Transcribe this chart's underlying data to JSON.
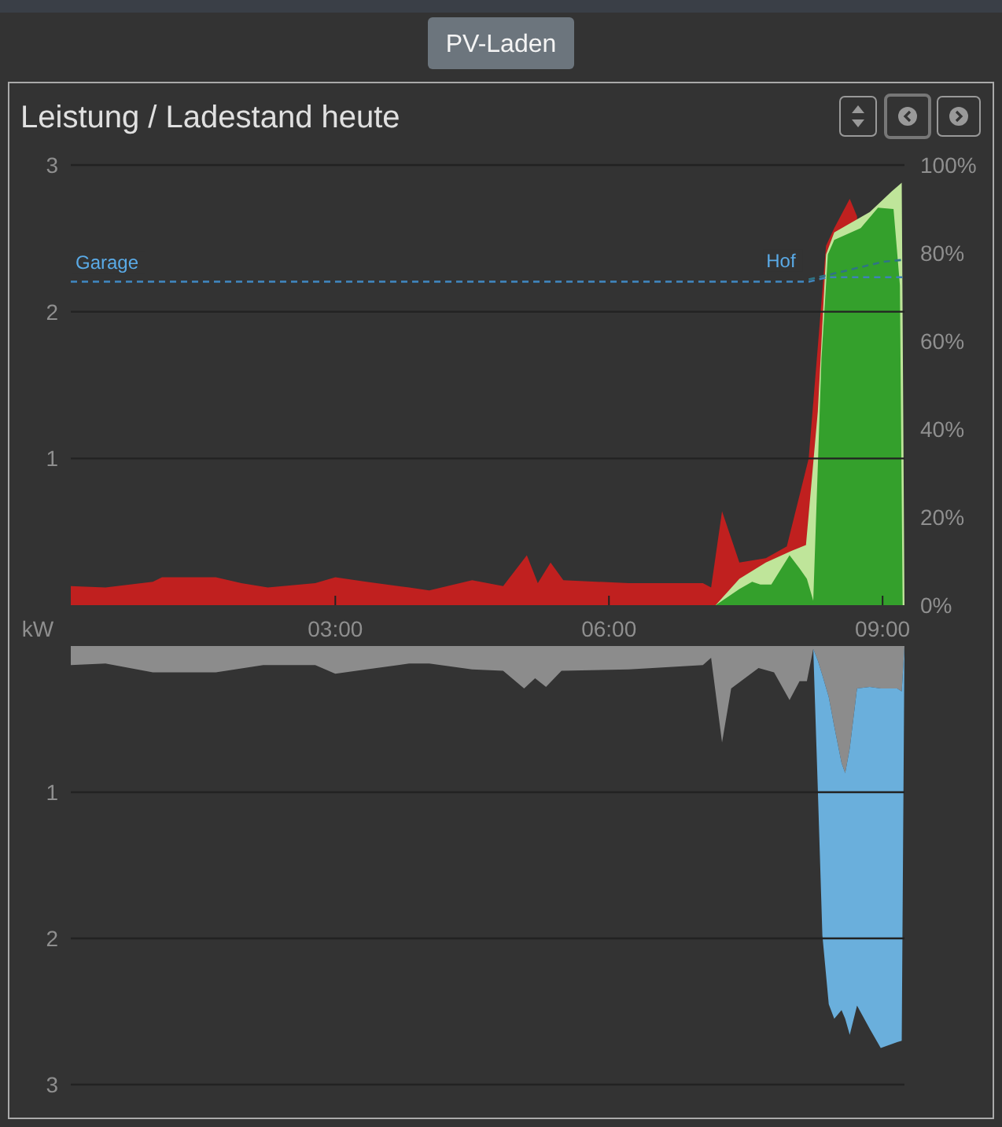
{
  "chart_data": [
    {
      "type": "area",
      "title": "Leistung / Ladestand heute",
      "ylabel": "kW",
      "annotations": [
        "PV-Laden"
      ],
      "xlim": [
        0.1,
        9.24
      ],
      "xticks": [
        {
          "value": 3,
          "label": "03:00"
        },
        {
          "value": 6,
          "label": "06:00"
        },
        {
          "value": 9,
          "label": "09:00"
        }
      ],
      "ylim": [
        0,
        3
      ],
      "yticks": [
        1,
        2,
        3
      ],
      "y2lim": [
        0,
        100
      ],
      "y2ticks": [
        {
          "value": 0,
          "label": "0%"
        },
        {
          "value": 20,
          "label": "20%"
        },
        {
          "value": 40,
          "label": "40%"
        },
        {
          "value": 60,
          "label": "60%"
        },
        {
          "value": 80,
          "label": "80%"
        },
        {
          "value": 100,
          "label": "100%"
        }
      ],
      "grid": "y",
      "series": [
        {
          "color": "#c0201f",
          "x": [
            0.1,
            0.48,
            1.0,
            1.1,
            1.69,
            1.97,
            2.26,
            2.78,
            3.0,
            3.34,
            3.81,
            4.03,
            4.5,
            4.84,
            5.1,
            5.22,
            5.36,
            5.5,
            6.22,
            7.03,
            7.12,
            7.24,
            7.43,
            7.72,
            7.95,
            8.19,
            8.38,
            8.47,
            8.64,
            8.72,
            8.78
          ],
          "values": [
            0.13,
            0.12,
            0.16,
            0.19,
            0.19,
            0.15,
            0.12,
            0.15,
            0.19,
            0.16,
            0.12,
            0.1,
            0.17,
            0.13,
            0.34,
            0.15,
            0.29,
            0.17,
            0.15,
            0.15,
            0.12,
            0.64,
            0.29,
            0.32,
            0.4,
            1.0,
            2.45,
            2.57,
            2.77,
            2.65,
            0
          ]
        },
        {
          "color": "#bfe59a",
          "x": [
            7.17,
            7.43,
            7.72,
            8.0,
            8.16,
            8.29,
            8.38,
            8.47,
            8.86,
            9.1,
            9.21,
            9.24
          ],
          "values": [
            0,
            0.18,
            0.29,
            0.37,
            0.41,
            1.32,
            2.39,
            2.54,
            2.68,
            2.82,
            2.88,
            0
          ]
        },
        {
          "color": "#34a02c",
          "x": [
            7.17,
            7.43,
            7.57,
            7.66,
            7.78,
            7.98,
            8.09,
            8.17,
            8.24,
            8.33,
            8.4,
            8.47,
            8.76,
            8.95,
            9.12,
            9.19,
            9.22
          ],
          "values": [
            0,
            0.11,
            0.16,
            0.14,
            0.14,
            0.34,
            0.25,
            0.18,
            0.03,
            1.68,
            2.39,
            2.49,
            2.57,
            2.71,
            2.7,
            2.18,
            0
          ]
        },
        {
          "name": "Garage",
          "type": "line",
          "axis": "y2",
          "line_style": "dashed",
          "color": "#3f82b8",
          "x": [
            0.1,
            8.19,
            8.4,
            9.24
          ],
          "values": [
            73.5,
            73.5,
            74.5,
            74.5
          ]
        },
        {
          "name": "Hof",
          "type": "line",
          "axis": "y2",
          "line_style": "dashed",
          "color": "#2f7486",
          "x": [
            8.19,
            8.6,
            9.0,
            9.24
          ],
          "values": [
            74,
            76,
            78,
            78.5
          ]
        }
      ]
    },
    {
      "type": "area",
      "stacked": true,
      "tick_labels": "y",
      "grid": "y",
      "x": [
        0.1,
        0.48,
        1.0,
        1.69,
        2.21,
        2.78,
        3.0,
        3.34,
        3.81,
        4.03,
        4.5,
        4.84,
        5.07,
        5.19,
        5.31,
        5.48,
        6.22,
        7.03,
        7.12,
        7.24,
        7.34,
        7.64,
        7.81,
        7.98,
        8.09,
        8.17,
        8.24,
        8.29,
        8.34,
        8.41,
        8.47,
        8.55,
        8.59,
        8.64,
        8.72,
        8.86,
        8.98,
        9.16,
        9.21,
        9.24
      ],
      "xlim": [
        0.1,
        9.24
      ],
      "ylim": [
        3,
        0
      ],
      "yticks": [
        1,
        2,
        3
      ],
      "series": [
        {
          "color": "#8c8c8c",
          "values": [
            0.13,
            0.12,
            0.18,
            0.18,
            0.13,
            0.13,
            0.19,
            0.16,
            0.12,
            0.12,
            0.16,
            0.17,
            0.29,
            0.22,
            0.28,
            0.17,
            0.16,
            0.13,
            0.08,
            0.66,
            0.29,
            0.15,
            0.18,
            0.37,
            0.24,
            0.24,
            0.02,
            0.1,
            0.2,
            0.35,
            0.55,
            0.8,
            0.87,
            0.7,
            0.29,
            0.28,
            0.29,
            0.29,
            0.31,
            0
          ]
        },
        {
          "color": "#6aafdc",
          "values": [
            null,
            null,
            null,
            null,
            null,
            null,
            null,
            null,
            null,
            null,
            null,
            null,
            null,
            null,
            null,
            null,
            null,
            null,
            null,
            null,
            null,
            null,
            null,
            null,
            null,
            null,
            0,
            0.88,
            1.78,
            2.1,
            2.0,
            1.69,
            1.68,
            1.96,
            2.17,
            2.34,
            2.46,
            2.42,
            2.39,
            0
          ]
        }
      ]
    }
  ]
}
